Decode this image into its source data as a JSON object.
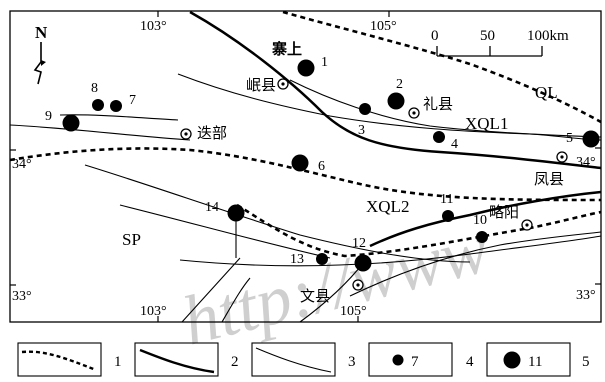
{
  "map": {
    "north_label": "N",
    "scale": {
      "ticks": [
        "0",
        "50",
        "100km"
      ]
    },
    "longitudes": {
      "top": [
        "103°",
        "105°"
      ],
      "bottom": [
        "103°",
        "105°"
      ]
    },
    "latitudes": {
      "left_34": "34°",
      "right_34": "34°",
      "left_33": "33°",
      "right_33": "33°"
    },
    "regions": {
      "ql": "QL",
      "sp": "SP",
      "xql1": "XQL1",
      "xql2": "XQL2"
    },
    "towns": {
      "zhaishang": "寨上",
      "minxian": "岷县",
      "lixian": "礼县",
      "diebu": "迭部",
      "fengxian": "凤县",
      "lueyang": "略阳",
      "wenxian": "文县"
    },
    "sites": [
      {
        "id": "1",
        "size": "large"
      },
      {
        "id": "2",
        "size": "large"
      },
      {
        "id": "3",
        "size": "small"
      },
      {
        "id": "4",
        "size": "small"
      },
      {
        "id": "5",
        "size": "large"
      },
      {
        "id": "6",
        "size": "large"
      },
      {
        "id": "7",
        "size": "small"
      },
      {
        "id": "8",
        "size": "small"
      },
      {
        "id": "9",
        "size": "large"
      },
      {
        "id": "10",
        "size": "small"
      },
      {
        "id": "11",
        "size": "small"
      },
      {
        "id": "12",
        "size": "large"
      },
      {
        "id": "13",
        "size": "small"
      },
      {
        "id": "14",
        "size": "large"
      }
    ],
    "watermark": "http://www"
  },
  "legend": {
    "items": [
      {
        "number": "1",
        "symbol": "dashed-line"
      },
      {
        "number": "2",
        "symbol": "thick-line"
      },
      {
        "number": "3",
        "symbol": "thin-line"
      },
      {
        "number": "4",
        "symbol": "small-dot",
        "sample": "7"
      },
      {
        "number": "5",
        "symbol": "large-dot",
        "sample": "11"
      }
    ]
  }
}
